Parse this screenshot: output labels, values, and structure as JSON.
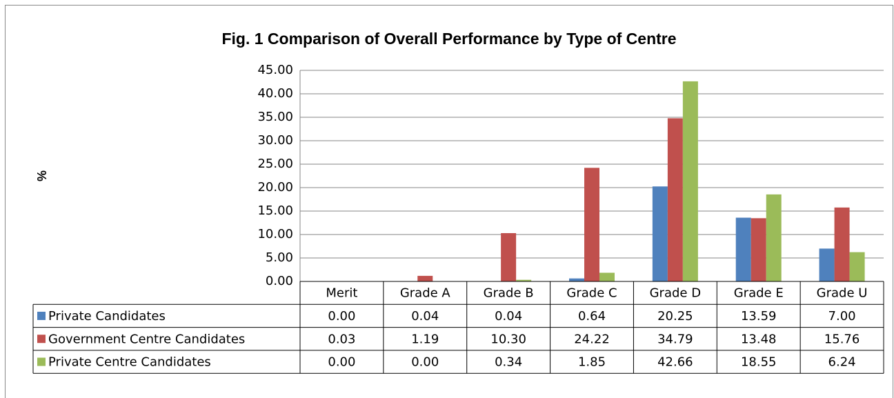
{
  "chart_data": {
    "type": "bar",
    "title": "Fig. 1 Comparison of Overall Performance by Type of Centre",
    "y_label": "%",
    "categories": [
      "Merit",
      "Grade A",
      "Grade B",
      "Grade C",
      "Grade D",
      "Grade E",
      "Grade U"
    ],
    "series": [
      {
        "name": "Private Candidates",
        "color": "#4f81bd",
        "values": [
          0.0,
          0.04,
          0.04,
          0.64,
          20.25,
          13.59,
          7.0
        ],
        "value_labels": [
          "0.00",
          "0.04",
          "0.04",
          "0.64",
          "20.25",
          "13.59",
          "7.00"
        ]
      },
      {
        "name": "Government Centre Candidates",
        "color": "#c0504d",
        "values": [
          0.03,
          1.19,
          10.3,
          24.22,
          34.79,
          13.48,
          15.76
        ],
        "value_labels": [
          "0.03",
          "1.19",
          "10.30",
          "24.22",
          "34.79",
          "13.48",
          "15.76"
        ]
      },
      {
        "name": "Private Centre Candidates",
        "color": "#9bbb59",
        "values": [
          0.0,
          0.0,
          0.34,
          1.85,
          42.66,
          18.55,
          6.24
        ],
        "value_labels": [
          "0.00",
          "0.00",
          "0.34",
          "1.85",
          "42.66",
          "18.55",
          "6.24"
        ]
      }
    ],
    "ylim": [
      0,
      45
    ],
    "yticks": [
      {
        "value": 0,
        "label": "0.00"
      },
      {
        "value": 5,
        "label": "5.00"
      },
      {
        "value": 10,
        "label": "10.00"
      },
      {
        "value": 15,
        "label": "15.00"
      },
      {
        "value": 20,
        "label": "20.00"
      },
      {
        "value": 25,
        "label": "25.00"
      },
      {
        "value": 30,
        "label": "30.00"
      },
      {
        "value": 35,
        "label": "35.00"
      },
      {
        "value": 40,
        "label": "40.00"
      },
      {
        "value": 45,
        "label": "45.00"
      }
    ],
    "grid": true
  }
}
